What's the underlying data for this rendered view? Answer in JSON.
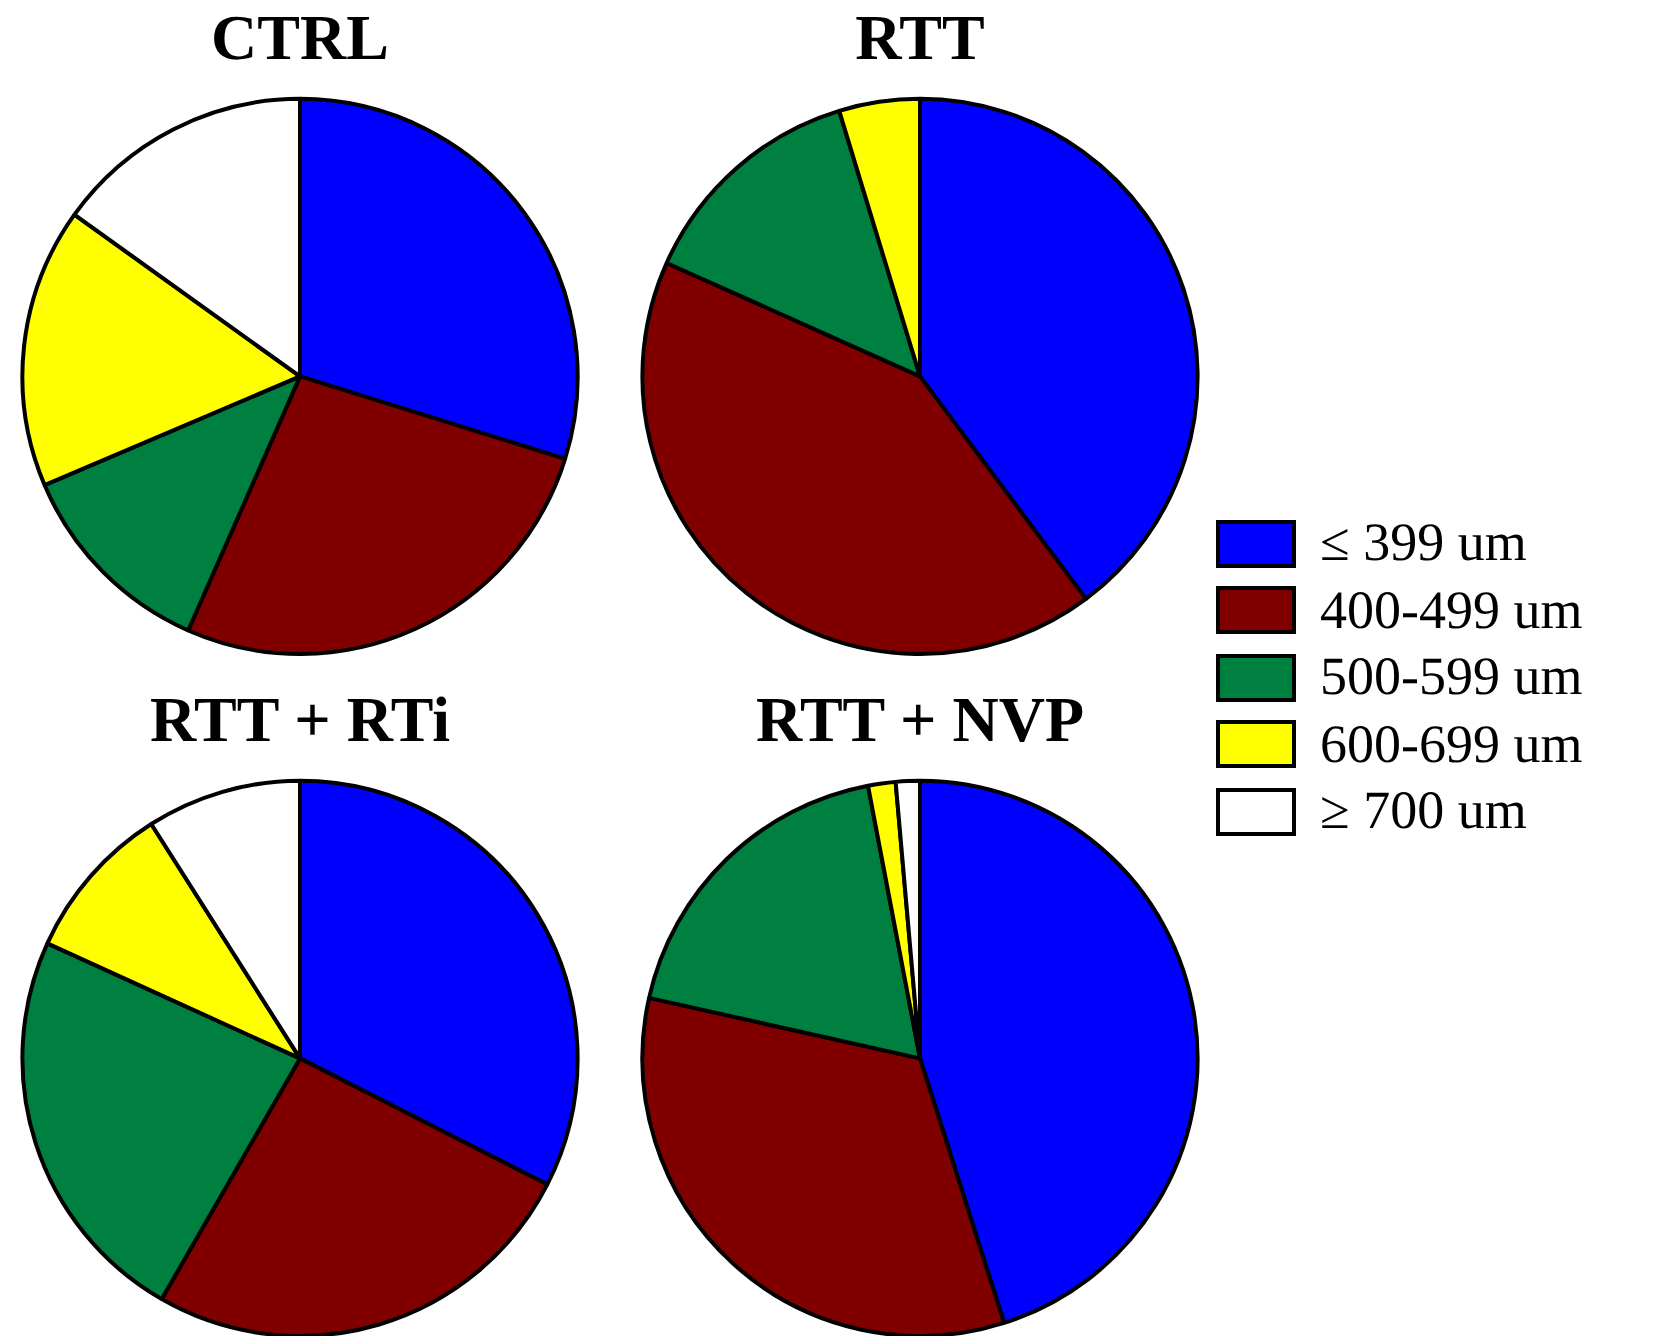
{
  "chart_data": [
    {
      "type": "pie",
      "title": "CTRL",
      "categories": [
        "≤ 399 um",
        "400-499 um",
        "500-599 um",
        "600-699 um",
        "≥ 700 um"
      ],
      "values": [
        29.8,
        26.8,
        12,
        16.3,
        15.1
      ],
      "colors": [
        "#0000ff",
        "#800000",
        "#008040",
        "#ffff00",
        "#ffffff"
      ],
      "legend": "right"
    },
    {
      "type": "pie",
      "title": "RTT",
      "categories": [
        null,
        null,
        null,
        null,
        null
      ],
      "values": [
        39.8,
        41.9,
        13.6,
        4.7,
        0
      ],
      "colors": [
        "#0000ff",
        "#800000",
        "#008040",
        "#ffff00",
        "#ffffff"
      ]
    },
    {
      "type": "pie",
      "title": "RTT + RTi",
      "categories": [
        null,
        null,
        null,
        null,
        null
      ],
      "values": [
        32.5,
        25.8,
        23.5,
        9.2,
        9
      ],
      "colors": [
        "#0000ff",
        "#800000",
        "#008040",
        "#ffff00",
        "#ffffff"
      ]
    },
    {
      "type": "pie",
      "title": "RTT + NVP",
      "categories": [
        null,
        null,
        null,
        null,
        null
      ],
      "values": [
        45.1,
        33.4,
        18.5,
        1.6,
        1.4
      ],
      "colors": [
        "#0000ff",
        "#800000",
        "#008040",
        "#ffff00",
        "#ffffff"
      ]
    }
  ]
}
